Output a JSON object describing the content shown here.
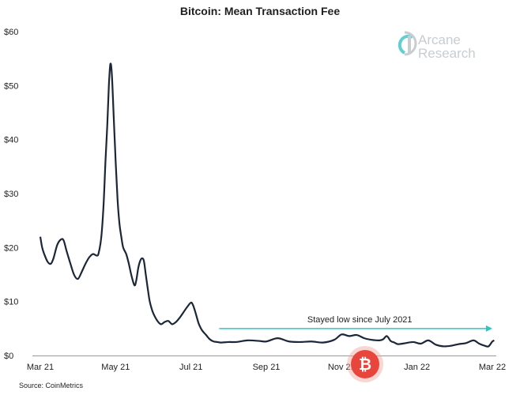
{
  "chart_data": {
    "type": "line",
    "title": "Bitcoin: Mean Transaction Fee",
    "xlabel": "",
    "ylabel": "",
    "ylim": [
      0,
      60
    ],
    "y_ticks": [
      {
        "value": 0,
        "label": "$0"
      },
      {
        "value": 10,
        "label": "$10"
      },
      {
        "value": 20,
        "label": "$20"
      },
      {
        "value": 30,
        "label": "$30"
      },
      {
        "value": 40,
        "label": "$40"
      },
      {
        "value": 50,
        "label": "$50"
      },
      {
        "value": 60,
        "label": "$60"
      }
    ],
    "x_ticks": [
      {
        "index": 0,
        "label": "Mar 21"
      },
      {
        "index": 2,
        "label": "May 21"
      },
      {
        "index": 4,
        "label": "Jul 21"
      },
      {
        "index": 6,
        "label": "Sep 21"
      },
      {
        "index": 8,
        "label": "Nov 21"
      },
      {
        "index": 10,
        "label": "Jan 22"
      },
      {
        "index": 12,
        "label": "Mar 22"
      }
    ],
    "x_range": [
      0,
      12
    ],
    "series": [
      {
        "name": "Mean Transaction Fee",
        "color": "#1b2738",
        "x": [
          0.0,
          0.05,
          0.12,
          0.2,
          0.28,
          0.35,
          0.45,
          0.55,
          0.62,
          0.7,
          0.8,
          0.9,
          1.0,
          1.1,
          1.2,
          1.3,
          1.4,
          1.5,
          1.55,
          1.62,
          1.68,
          1.73,
          1.78,
          1.82,
          1.86,
          1.9,
          1.95,
          2.0,
          2.05,
          2.1,
          2.15,
          2.2,
          2.28,
          2.35,
          2.42,
          2.5,
          2.55,
          2.6,
          2.65,
          2.7,
          2.75,
          2.8,
          2.85,
          2.9,
          2.95,
          3.0,
          3.1,
          3.2,
          3.3,
          3.4,
          3.5,
          3.6,
          3.7,
          3.8,
          3.9,
          4.0,
          4.05,
          4.1,
          4.15,
          4.2,
          4.25,
          4.3,
          4.4,
          4.5,
          4.6,
          4.7,
          4.8,
          5.0,
          5.2,
          5.5,
          5.8,
          6.0,
          6.3,
          6.6,
          6.9,
          7.2,
          7.5,
          7.8,
          8.0,
          8.2,
          8.4,
          8.6,
          8.8,
          9.0,
          9.1,
          9.2,
          9.3,
          9.4,
          9.5,
          9.7,
          9.9,
          10.1,
          10.3,
          10.5,
          10.7,
          10.9,
          11.1,
          11.3,
          11.5,
          11.65,
          11.8,
          11.9,
          12.0,
          12.05
        ],
        "values": [
          22,
          20,
          18.5,
          17.3,
          17,
          18,
          20.5,
          21.5,
          21.3,
          19.3,
          17,
          14.9,
          14.2,
          15.5,
          17,
          18.2,
          18.8,
          18.5,
          19,
          22,
          28,
          36,
          43,
          50,
          54,
          52,
          44,
          36,
          29,
          24.5,
          22,
          20,
          18.8,
          17,
          14.8,
          13,
          14,
          16.2,
          17.5,
          18,
          17.5,
          15,
          12.5,
          10.2,
          8.8,
          7.8,
          6.5,
          5.8,
          6.2,
          6.4,
          5.8,
          6.2,
          7,
          8,
          9,
          9.8,
          9.4,
          8.4,
          7.2,
          6,
          5.2,
          4.6,
          3.8,
          3,
          2.6,
          2.5,
          2.4,
          2.5,
          2.5,
          2.8,
          2.7,
          2.6,
          3.2,
          2.6,
          2.5,
          2.6,
          2.4,
          2.9,
          3.9,
          3.6,
          3.8,
          3.2,
          2.9,
          2.8,
          3.0,
          3.6,
          2.7,
          2.4,
          2.1,
          2.3,
          2.5,
          2.2,
          2.8,
          2.0,
          1.7,
          1.8,
          2.1,
          2.3,
          2.8,
          2.2,
          1.8,
          1.7,
          2.6,
          2.8
        ]
      }
    ],
    "annotation": {
      "text": "Stayed low since July 2021",
      "arrow_from_x": 4.75,
      "arrow_to_x": 12.0,
      "arrow_y": 5.0,
      "color": "#2ec4c8"
    },
    "source": "Source: CoinMetrics",
    "legend": "none",
    "grid": false
  },
  "branding": {
    "logo_line1": "Arcane",
    "logo_line2": "Research",
    "logo_icon": "arcane-logo-icon",
    "watermark_icon": "bitcoin-watermark-icon",
    "watermark_glyph": "₿",
    "logo_color": "#c8cdd1",
    "watermark_color": "#e8453c"
  }
}
